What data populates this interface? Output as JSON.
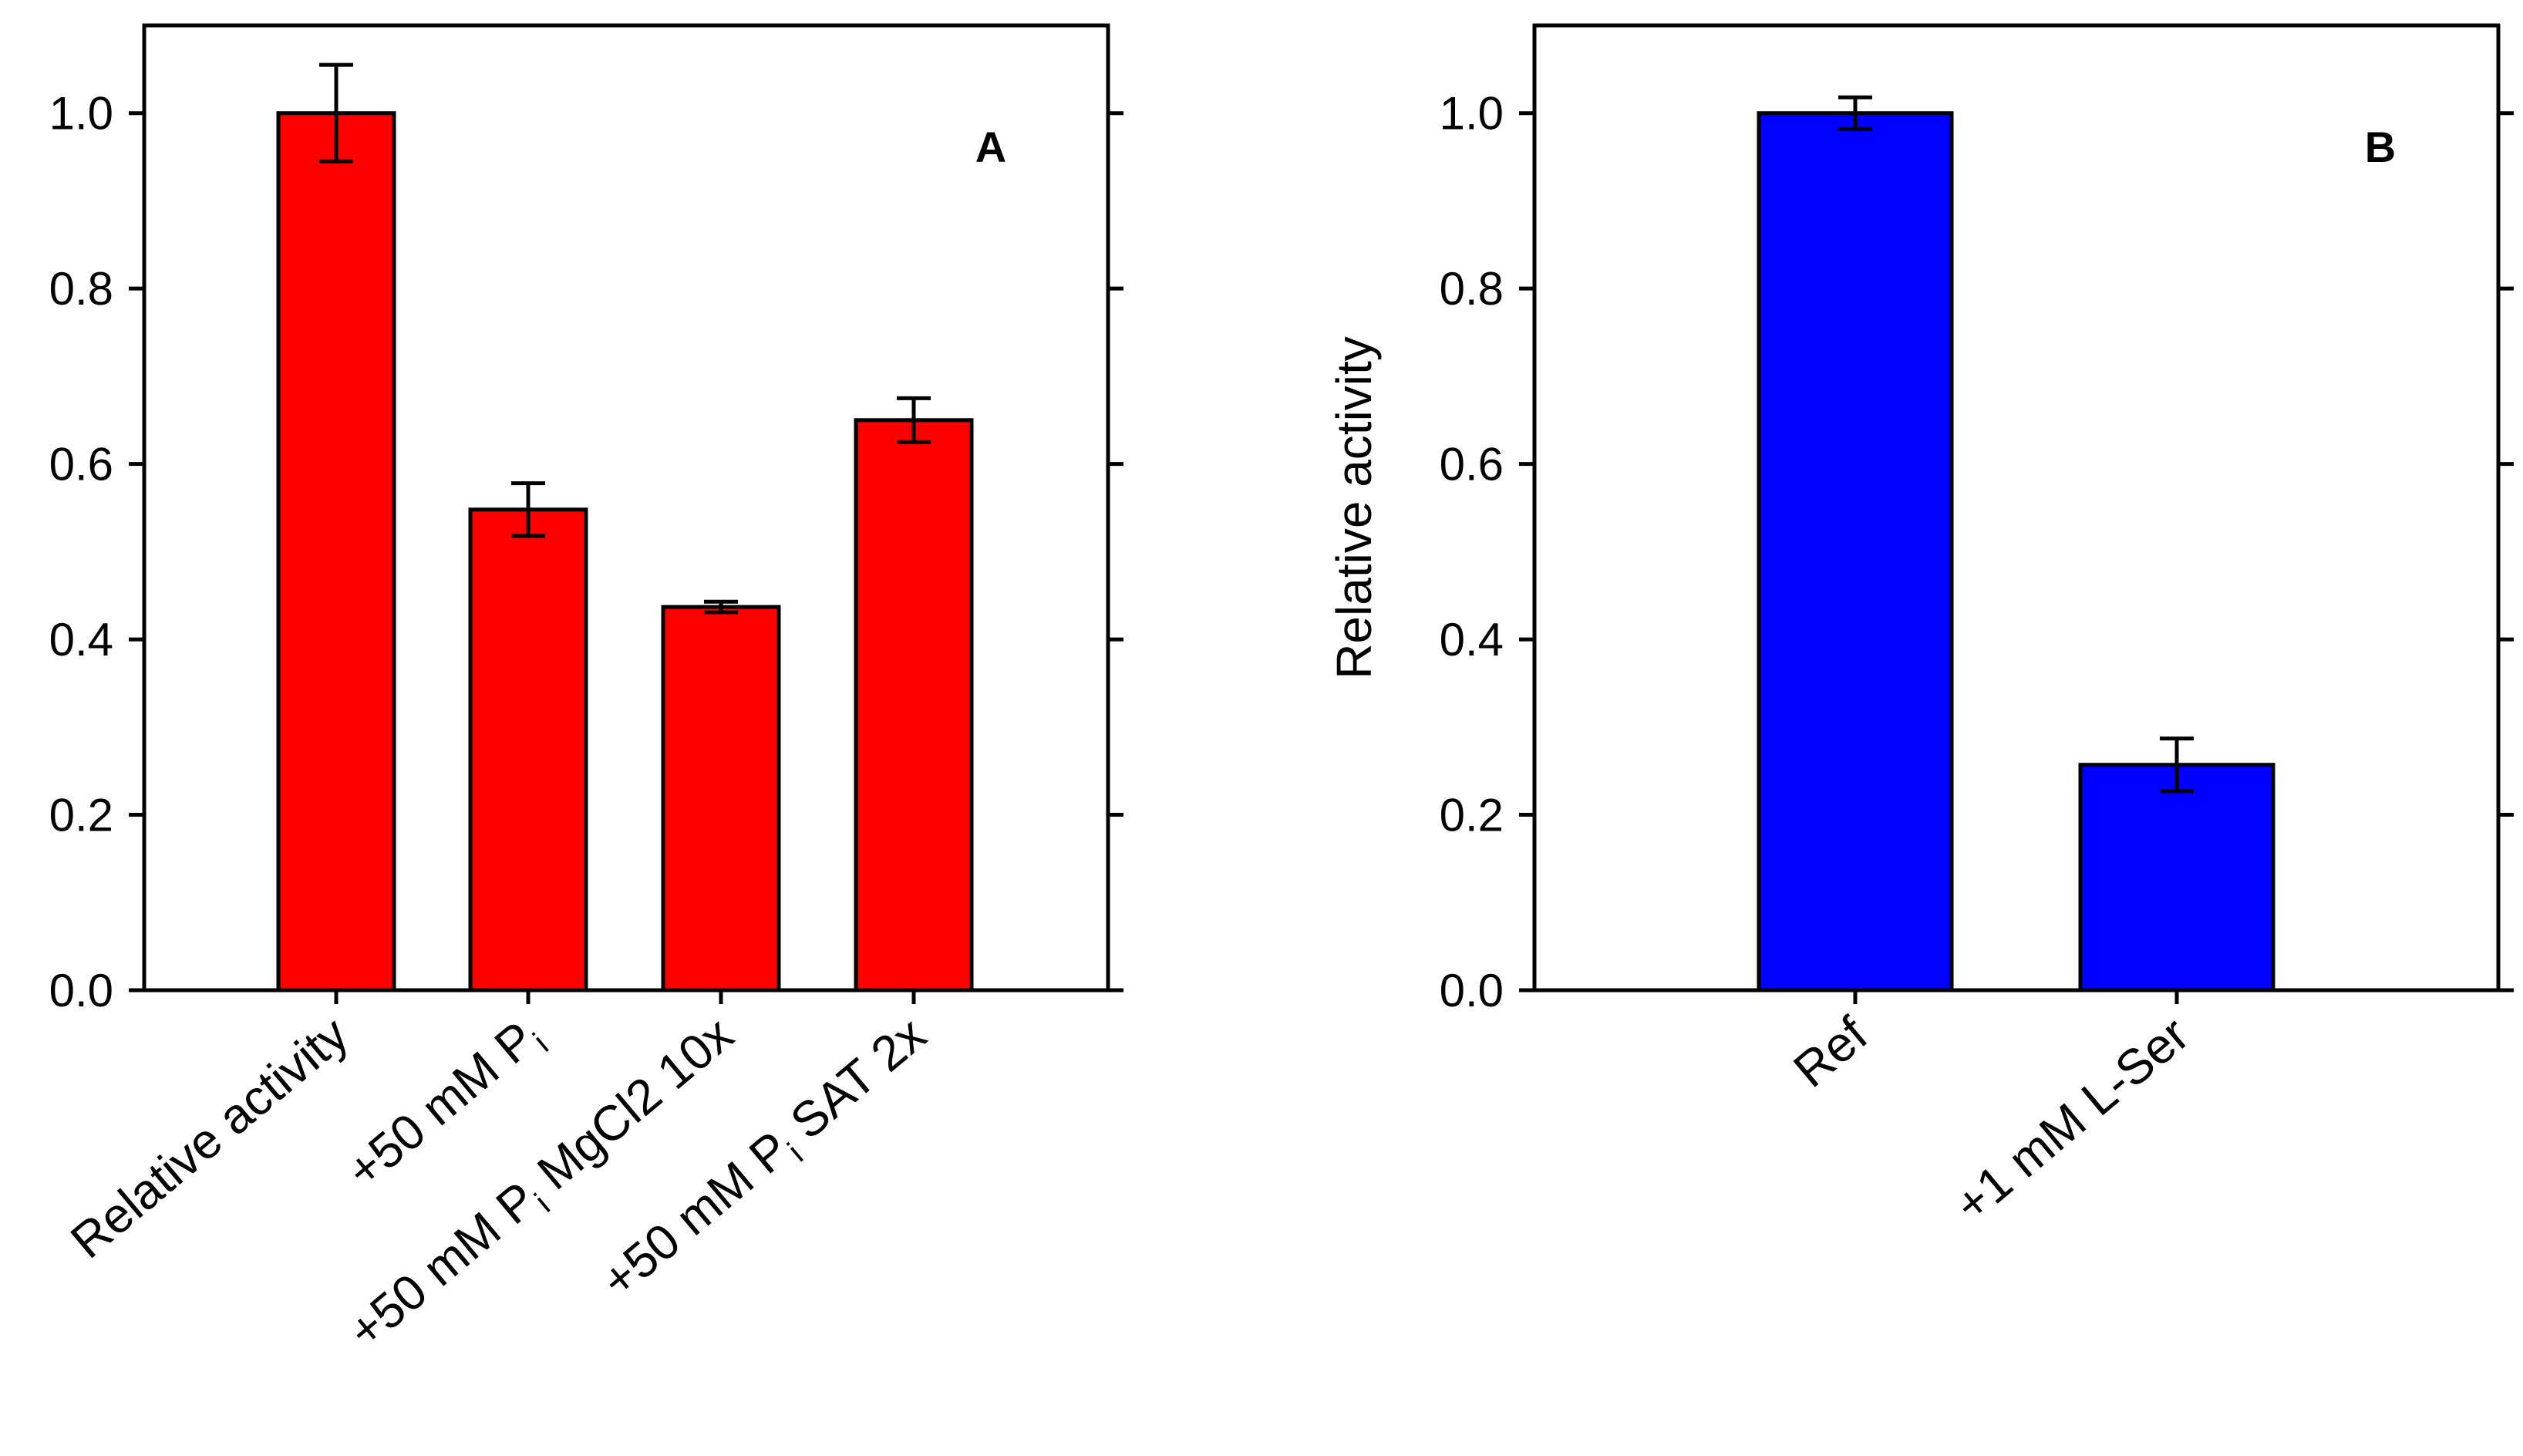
{
  "chart_data": [
    {
      "type": "bar",
      "panel_label": "A",
      "ylabel": "",
      "ylim": [
        0,
        1.1
      ],
      "yticks": [
        "0.0",
        "0.2",
        "0.4",
        "0.6",
        "0.8",
        "1.0"
      ],
      "categories": [
        {
          "label": "Relative activity"
        },
        {
          "label": "+50 mM P",
          "sub": "i"
        },
        {
          "label": "+50 mM P",
          "sub": "i",
          "suffix": " MgCl2 10x"
        },
        {
          "label": "+50 mM P",
          "sub": "i",
          "suffix": " SAT 2x"
        }
      ],
      "values": [
        1.0,
        0.548,
        0.437,
        0.65
      ],
      "errors": [
        0.055,
        0.03,
        0.006,
        0.025
      ],
      "bar_color": "#ff0000"
    },
    {
      "type": "bar",
      "panel_label": "B",
      "ylabel": "Relative activity",
      "ylim": [
        0,
        1.1
      ],
      "yticks": [
        "0.0",
        "0.2",
        "0.4",
        "0.6",
        "0.8",
        "1.0"
      ],
      "categories": [
        {
          "label": "Ref"
        },
        {
          "label": "+1 mM L-Ser"
        }
      ],
      "values": [
        1.0,
        0.257
      ],
      "errors": [
        0.018,
        0.03
      ],
      "bar_color": "#0000ff"
    }
  ]
}
